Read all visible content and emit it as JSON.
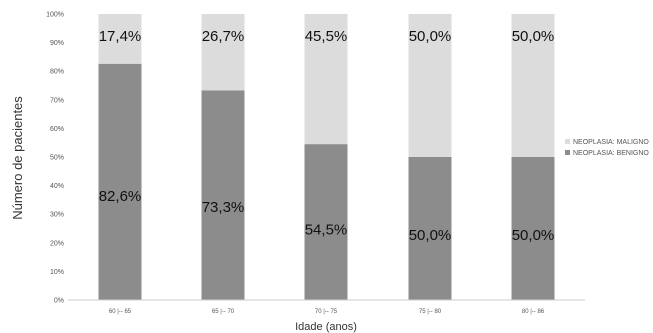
{
  "chart_data": {
    "type": "bar",
    "stacked": true,
    "percent": true,
    "categories": [
      "60 |-- 65",
      "65 |-- 70",
      "70 |-- 75",
      "75 |-- 80",
      "80 |-- 86"
    ],
    "series": [
      {
        "name": "NEOPLASIA: BENIGNO",
        "values": [
          82.6,
          73.3,
          54.5,
          50.0,
          50.0
        ],
        "labels": [
          "82,6%",
          "73,3%",
          "54,5%",
          "50,0%",
          "50,0%"
        ],
        "color": "#8c8c8c"
      },
      {
        "name": "NEOPLASIA: MALIGNO",
        "values": [
          17.4,
          26.7,
          45.5,
          50.0,
          50.0
        ],
        "labels": [
          "17,4%",
          "26,7%",
          "45,5%",
          "50,0%",
          "50,0%"
        ],
        "color": "#dcdcdc"
      }
    ],
    "yticks": [
      "0%",
      "10%",
      "20%",
      "30%",
      "40%",
      "50%",
      "60%",
      "70%",
      "80%",
      "90%",
      "100%"
    ],
    "ylim": [
      0,
      100
    ],
    "xlabel": "Idade (anos)",
    "ylabel": "Número de pacientes",
    "legend_position": "right",
    "grid": false
  }
}
